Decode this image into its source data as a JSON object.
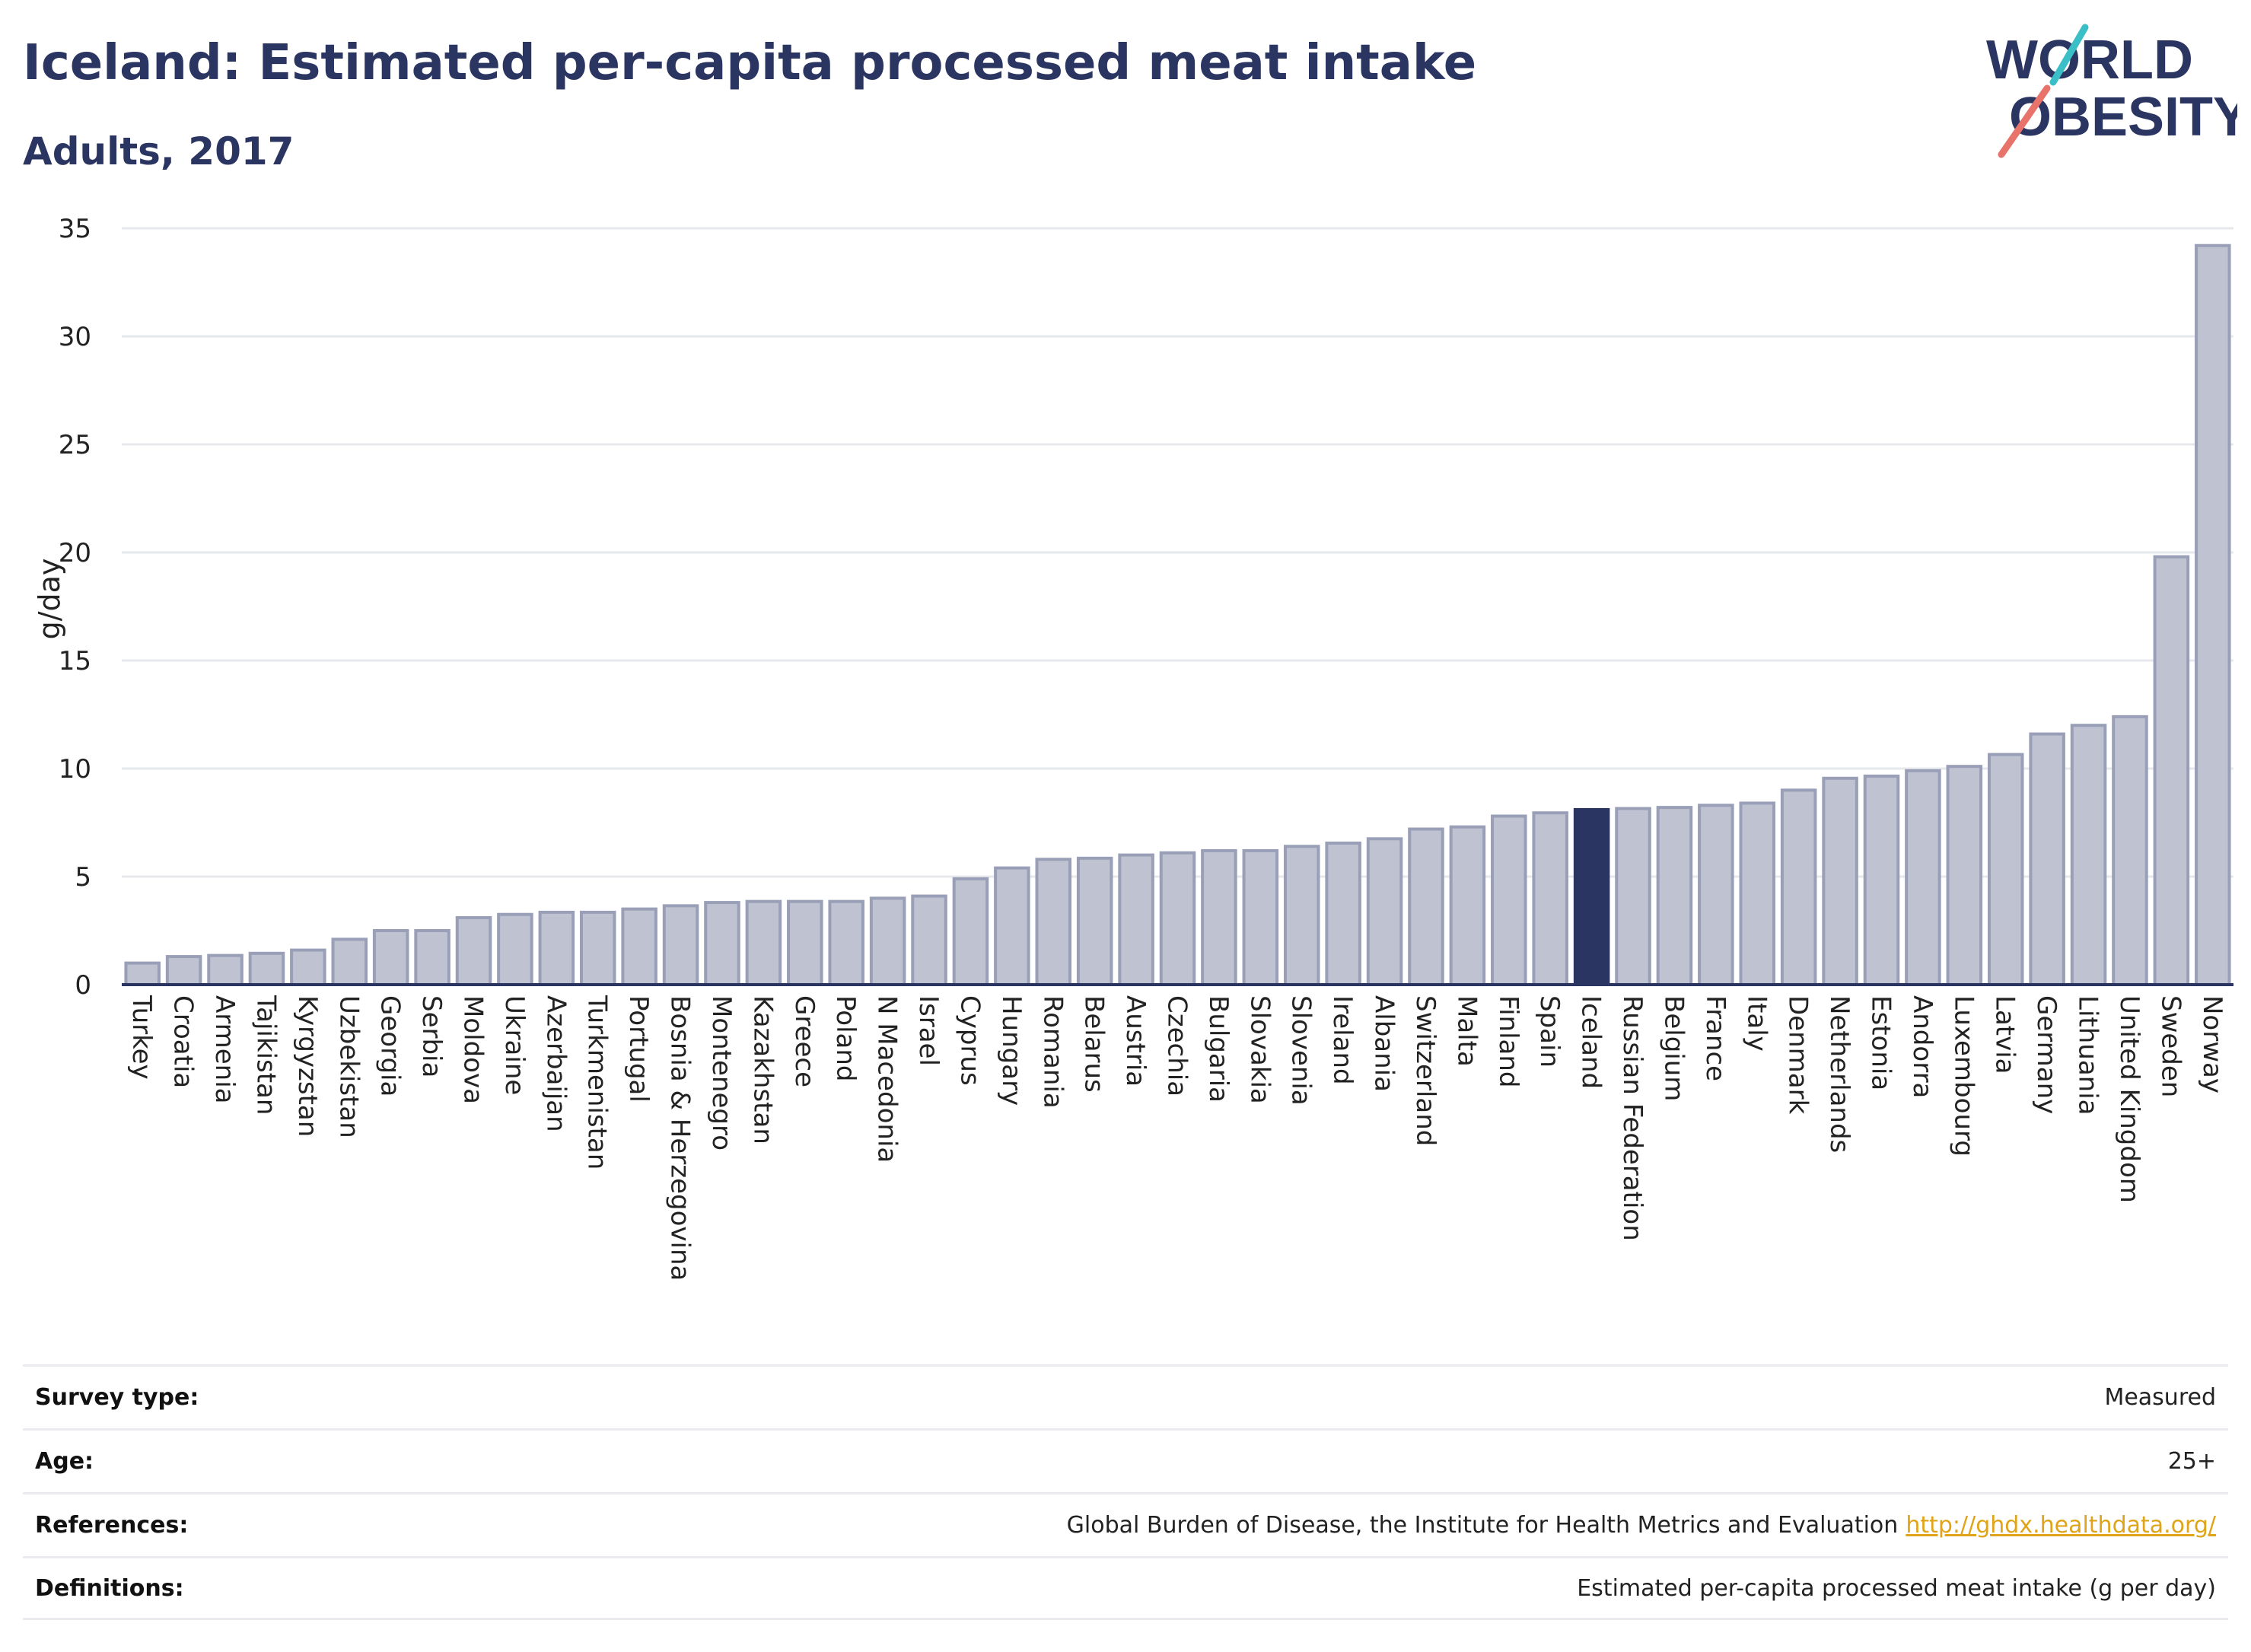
{
  "title": "Iceland: Estimated per-capita processed meat intake",
  "subtitle": "Adults, 2017",
  "logo": {
    "line1": "WORLD",
    "line2": "OBESITY",
    "accent_teal": "#3bbfc7",
    "accent_coral": "#e8736a"
  },
  "colors": {
    "bar": "#bfc2d0",
    "bar_border": "#9a9fb8",
    "highlight": "#2b3561",
    "grid": "#e6e8ec",
    "text": "#2b3561"
  },
  "chart_data": {
    "type": "bar",
    "ylabel": "g/day",
    "ylim": [
      0,
      35
    ],
    "yticks": [
      0,
      5,
      10,
      15,
      20,
      25,
      30,
      35
    ],
    "grid": true,
    "highlight": "Iceland",
    "categories": [
      "Turkey",
      "Croatia",
      "Armenia",
      "Tajikistan",
      "Kyrgyzstan",
      "Uzbekistan",
      "Georgia",
      "Serbia",
      "Moldova",
      "Ukraine",
      "Azerbaijan",
      "Turkmenistan",
      "Portugal",
      "Bosnia & Herzegovina",
      "Montenegro",
      "Kazakhstan",
      "Greece",
      "Poland",
      "N Macedonia",
      "Israel",
      "Cyprus",
      "Hungary",
      "Romania",
      "Belarus",
      "Austria",
      "Czechia",
      "Bulgaria",
      "Slovakia",
      "Slovenia",
      "Ireland",
      "Albania",
      "Switzerland",
      "Malta",
      "Finland",
      "Spain",
      "Iceland",
      "Russian Federation",
      "Belgium",
      "France",
      "Italy",
      "Denmark",
      "Netherlands",
      "Estonia",
      "Andorra",
      "Luxembourg",
      "Latvia",
      "Germany",
      "Lithuania",
      "United Kingdom",
      "Sweden",
      "Norway"
    ],
    "values": [
      1.0,
      1.3,
      1.35,
      1.45,
      1.6,
      2.1,
      2.5,
      2.5,
      3.1,
      3.25,
      3.35,
      3.35,
      3.5,
      3.65,
      3.8,
      3.85,
      3.85,
      3.85,
      4.0,
      4.1,
      4.9,
      5.4,
      5.8,
      5.85,
      6.0,
      6.1,
      6.2,
      6.2,
      6.4,
      6.55,
      6.75,
      7.2,
      7.3,
      7.8,
      7.95,
      8.1,
      8.15,
      8.2,
      8.3,
      8.4,
      9.0,
      9.55,
      9.65,
      9.9,
      10.1,
      10.65,
      11.6,
      12.0,
      12.4,
      19.8,
      34.2
    ]
  },
  "info": [
    {
      "label": "Survey type:",
      "value": "Measured"
    },
    {
      "label": "Age:",
      "value": "25+"
    },
    {
      "label": "References:",
      "value": "Global Burden of Disease, the Institute for Health Metrics and Evaluation",
      "link": "http://ghdx.healthdata.org/"
    },
    {
      "label": "Definitions:",
      "value": "Estimated per-capita processed meat intake (g per day)"
    }
  ]
}
